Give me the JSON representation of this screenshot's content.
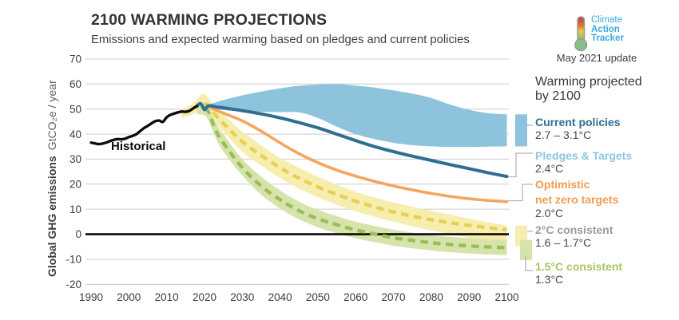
{
  "header": {
    "title": "2100 WARMING PROJECTIONS",
    "subtitle": "Emissions and expected warming based on pledges and current policies"
  },
  "logo": {
    "line1": "Climate",
    "line2": "Action",
    "line3": "Tracker",
    "update": "May 2021 update",
    "color": "#3cabdd"
  },
  "annotations": {
    "historical": "Historical"
  },
  "legend": {
    "heading1": "Warming projected",
    "heading2": "by 2100",
    "entries": [
      {
        "name": "Current policies",
        "temp": "2.7 – 3.1°C",
        "color": "#2e6f91"
      },
      {
        "name": "Pledges & Targets",
        "temp": "2.4°C",
        "color": "#8cc6e3"
      },
      {
        "name": "Optimistic\nnet zero targets",
        "temp": "2.0°C",
        "color": "#f39b51"
      },
      {
        "name": "2°C consistent",
        "temp": "1.6 – 1.7°C",
        "color": "#9c9c9c"
      },
      {
        "name": "1.5°C consistent",
        "temp": "1.3°C",
        "color": "#a8c566"
      }
    ]
  },
  "chart_data": {
    "type": "line",
    "title": "2100 WARMING PROJECTIONS",
    "subtitle": "Emissions and expected warming based on pledges and current policies",
    "xlabel": "",
    "ylabel_bold": "Global GHG emissions",
    "ylabel_units": "GtCO₂e / year",
    "xlim": [
      1990,
      2100
    ],
    "ylim": [
      -20,
      70
    ],
    "x_ticks": [
      1990,
      2000,
      2010,
      2020,
      2030,
      2040,
      2050,
      2060,
      2070,
      2080,
      2090,
      2100
    ],
    "y_ticks": [
      70,
      60,
      50,
      40,
      30,
      20,
      10,
      0,
      -10,
      -20
    ],
    "grid": true,
    "zero_line": true,
    "colors": {
      "grid": "#cccccc",
      "zero": "#000000",
      "tick_text": "#3c3c3c",
      "connector": "#b3b3b3",
      "axis_units_text": "#5f5f5f"
    },
    "series": [
      {
        "id": "historical",
        "name": "Historical",
        "kind": "line",
        "color": "#0d0d0d",
        "width": 3.4,
        "x": [
          1990,
          1991,
          1992,
          1993,
          1994,
          1995,
          1996,
          1997,
          1998,
          1999,
          2000,
          2001,
          2002,
          2003,
          2004,
          2005,
          2006,
          2007,
          2008,
          2009,
          2010,
          2011,
          2012,
          2013,
          2014,
          2015,
          2016,
          2017,
          2018
        ],
        "y": [
          36.6,
          36.3,
          36.0,
          36.2,
          36.6,
          37.2,
          37.7,
          38.0,
          37.9,
          38.2,
          38.8,
          39.3,
          40.0,
          41.2,
          42.4,
          43.3,
          44.3,
          45.2,
          45.4,
          44.9,
          46.7,
          47.7,
          48.2,
          48.7,
          49.0,
          48.9,
          49.3,
          50.3,
          51.2
        ]
      },
      {
        "id": "current-policies-band",
        "name": "Current policies",
        "kind": "band",
        "temp": "2.7 – 3.1°C",
        "color": "#8dc3dd",
        "x": [
          2021,
          2025,
          2030,
          2035,
          2040,
          2045,
          2050,
          2055,
          2060,
          2065,
          2070,
          2075,
          2080,
          2085,
          2090,
          2095,
          2100
        ],
        "top": [
          51.8,
          53.6,
          55.5,
          57.0,
          58.3,
          59.3,
          59.8,
          60.0,
          59.4,
          58.6,
          57.5,
          56.2,
          54.4,
          51.8,
          49.7,
          48.4,
          47.9
        ],
        "bottom": [
          50.6,
          49.6,
          49.1,
          48.9,
          48.8,
          48.7,
          46.5,
          43.0,
          40.0,
          38.0,
          36.5,
          35.6,
          35.1,
          34.9,
          34.9,
          35.0,
          35.1
        ]
      },
      {
        "id": "pledges-targets",
        "name": "Pledges & Targets",
        "kind": "line",
        "temp": "2.4°C",
        "color": "#2e6f91",
        "width": 4,
        "x": [
          2018,
          2019,
          2020,
          2021,
          2023,
          2025,
          2030,
          2035,
          2040,
          2045,
          2050,
          2055,
          2060,
          2065,
          2070,
          2075,
          2080,
          2085,
          2090,
          2095,
          2100
        ],
        "y": [
          51.2,
          52.2,
          49.8,
          51.3,
          50.9,
          50.5,
          49.4,
          48.1,
          46.5,
          44.6,
          42.5,
          40.0,
          37.4,
          35.0,
          33.0,
          31.2,
          29.5,
          27.8,
          26.2,
          24.6,
          23.1
        ]
      },
      {
        "id": "optimistic-net-zero",
        "name": "Optimistic net zero targets",
        "kind": "line",
        "temp": "2.0°C",
        "color": "#f4a55e",
        "width": 3.6,
        "x": [
          2021,
          2022,
          2025,
          2030,
          2035,
          2040,
          2045,
          2050,
          2055,
          2060,
          2065,
          2070,
          2075,
          2080,
          2085,
          2090,
          2095,
          2100
        ],
        "y": [
          51.0,
          50.3,
          48.4,
          45.3,
          41.2,
          36.5,
          32.2,
          28.6,
          25.6,
          23.2,
          21.1,
          19.3,
          17.7,
          16.3,
          15.1,
          14.2,
          13.5,
          13.0
        ]
      },
      {
        "id": "two-degree",
        "name": "2°C consistent",
        "kind": "band+dashed",
        "temp": "1.6 – 1.7°C",
        "band_color": "#f6edae",
        "line_color": "#e5d052",
        "x": [
          2014,
          2017,
          2019,
          2020,
          2021,
          2023,
          2025,
          2030,
          2035,
          2040,
          2045,
          2050,
          2055,
          2060,
          2065,
          2070,
          2075,
          2080,
          2085,
          2090,
          2095,
          2100
        ],
        "top": [
          50.0,
          52.5,
          55.5,
          56.0,
          54.5,
          50.5,
          47.8,
          41.0,
          35.5,
          30.5,
          26.5,
          23.0,
          19.8,
          17.0,
          14.7,
          12.7,
          11.0,
          9.4,
          7.8,
          6.3,
          4.8,
          3.4
        ],
        "bottom": [
          46.5,
          48.0,
          50.5,
          51.0,
          48.5,
          44.5,
          41.0,
          33.0,
          27.5,
          22.5,
          18.3,
          14.8,
          11.8,
          9.2,
          7.0,
          5.0,
          3.2,
          1.5,
          0.0,
          -1.5,
          -3.2,
          -4.9
        ],
        "center_x": [
          2020,
          2021,
          2023,
          2025,
          2030,
          2035,
          2040,
          2045,
          2050,
          2055,
          2060,
          2065,
          2070,
          2075,
          2080,
          2085,
          2090,
          2095,
          2100
        ],
        "center": [
          52.0,
          51.5,
          47.5,
          44.3,
          37.0,
          31.5,
          26.6,
          22.4,
          18.9,
          15.9,
          13.2,
          10.9,
          8.9,
          7.2,
          5.8,
          4.6,
          3.5,
          2.6,
          1.8
        ]
      },
      {
        "id": "one-five-degree",
        "name": "1.5°C consistent",
        "kind": "band+dashed",
        "temp": "1.3°C",
        "band_color": "#d6e3aa",
        "line_color": "#96bf59",
        "x": [
          2018,
          2020,
          2021,
          2023,
          2025,
          2030,
          2035,
          2040,
          2045,
          2050,
          2055,
          2060,
          2065,
          2070,
          2075,
          2080,
          2085,
          2090,
          2095,
          2100
        ],
        "top": [
          50.5,
          52.5,
          51.0,
          44.5,
          40.0,
          30.0,
          23.0,
          17.5,
          13.0,
          9.8,
          7.2,
          5.0,
          3.3,
          1.8,
          0.6,
          -0.4,
          -1.1,
          -1.6,
          -2.0,
          -2.3
        ],
        "bottom": [
          48.0,
          47.5,
          45.5,
          38.5,
          33.0,
          23.5,
          15.8,
          10.3,
          6.0,
          2.8,
          0.4,
          -1.6,
          -3.2,
          -4.6,
          -5.6,
          -6.5,
          -7.2,
          -7.7,
          -8.1,
          -8.4
        ],
        "center_x": [
          2020,
          2021,
          2023,
          2025,
          2030,
          2035,
          2040,
          2045,
          2050,
          2055,
          2060,
          2065,
          2070,
          2075,
          2080,
          2085,
          2090,
          2095,
          2100
        ],
        "center": [
          50.0,
          49.0,
          41.5,
          36.5,
          26.6,
          19.3,
          13.8,
          9.4,
          6.2,
          3.8,
          1.7,
          0.1,
          -1.4,
          -2.5,
          -3.4,
          -4.1,
          -4.7,
          -5.1,
          -5.4
        ]
      }
    ]
  }
}
